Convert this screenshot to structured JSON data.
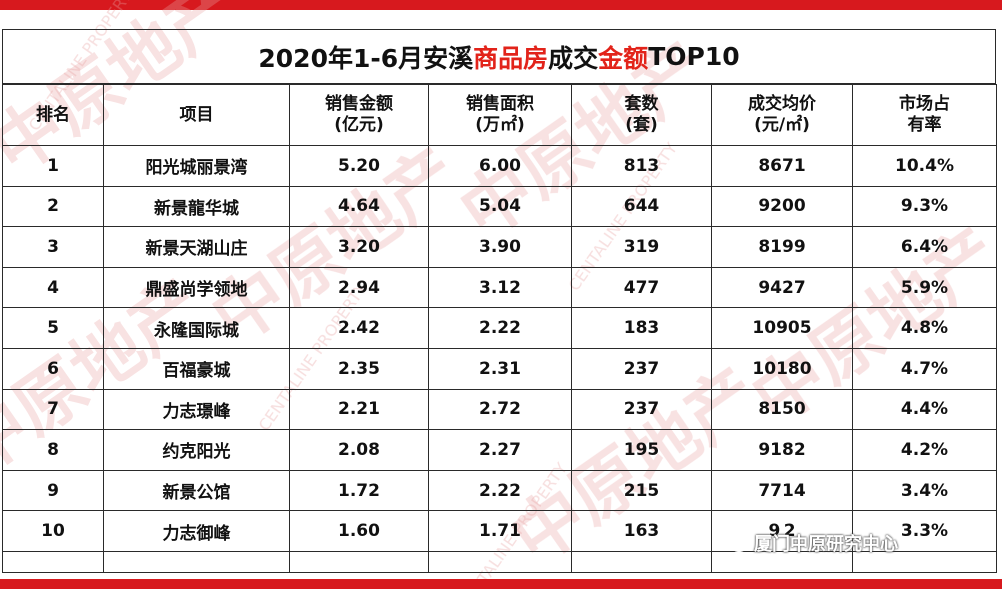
{
  "title": {
    "part1": "2020年1-6月安溪",
    "highlight1": "商品房",
    "part2": "成交",
    "highlight2": "金额",
    "part3": "TOP10"
  },
  "headers": [
    {
      "line1": "排名",
      "line2": ""
    },
    {
      "line1": "项目",
      "line2": ""
    },
    {
      "line1": "销售金额",
      "line2": "(亿元)"
    },
    {
      "line1": "销售面积",
      "line2": "(万㎡)"
    },
    {
      "line1": "套数",
      "line2": "(套)"
    },
    {
      "line1": "成交均价",
      "line2": "(元/㎡)"
    },
    {
      "line1": "市场占",
      "line2": "有率"
    }
  ],
  "rows": [
    {
      "rank": "1",
      "project": "阳光城丽景湾",
      "amount": "5.20",
      "area": "6.00",
      "units": "813",
      "price": "8671",
      "share": "10.4%"
    },
    {
      "rank": "2",
      "project": "新景龍华城",
      "amount": "4.64",
      "area": "5.04",
      "units": "644",
      "price": "9200",
      "share": "9.3%"
    },
    {
      "rank": "3",
      "project": "新景天湖山庄",
      "amount": "3.20",
      "area": "3.90",
      "units": "319",
      "price": "8199",
      "share": "6.4%"
    },
    {
      "rank": "4",
      "project": "鼎盛尚学领地",
      "amount": "2.94",
      "area": "3.12",
      "units": "477",
      "price": "9427",
      "share": "5.9%"
    },
    {
      "rank": "5",
      "project": "永隆国际城",
      "amount": "2.42",
      "area": "2.22",
      "units": "183",
      "price": "10905",
      "share": "4.8%"
    },
    {
      "rank": "6",
      "project": "百福豪城",
      "amount": "2.35",
      "area": "2.31",
      "units": "237",
      "price": "10180",
      "share": "4.7%"
    },
    {
      "rank": "7",
      "project": "力志璟峰",
      "amount": "2.21",
      "area": "2.72",
      "units": "237",
      "price": "8150",
      "share": "4.4%"
    },
    {
      "rank": "8",
      "project": "约克阳光",
      "amount": "2.08",
      "area": "2.27",
      "units": "195",
      "price": "9182",
      "share": "4.2%"
    },
    {
      "rank": "9",
      "project": "新景公馆",
      "amount": "1.72",
      "area": "2.22",
      "units": "215",
      "price": "7714",
      "share": "3.4%"
    },
    {
      "rank": "10",
      "project": "力志御峰",
      "amount": "1.60",
      "area": "1.71",
      "units": "163",
      "price": "9 2",
      "share": "3.3%"
    }
  ],
  "wechat_label": "厦门中原研究中心",
  "watermark_text": "中原地产",
  "watermark_en": "CENTALINE PROPERTY",
  "colors": {
    "accent": "#d7191e",
    "highlight": "#e2231a",
    "watermark": "#f3c9c9"
  }
}
